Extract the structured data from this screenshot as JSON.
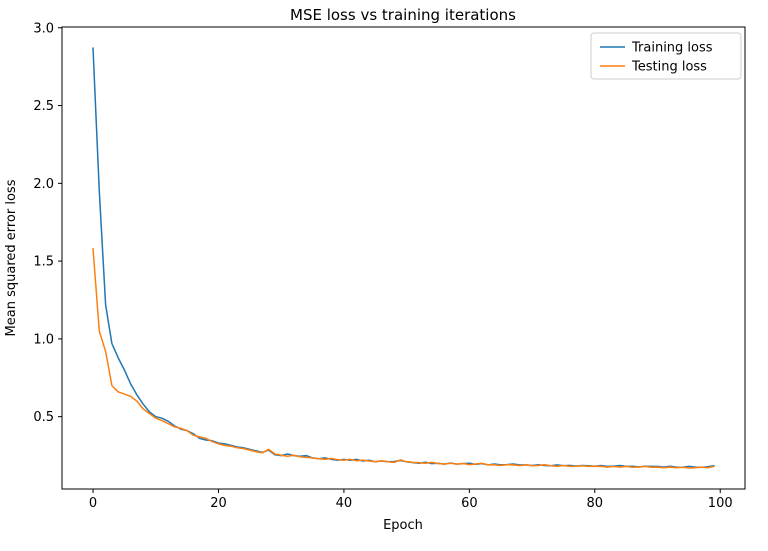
{
  "figure": {
    "title": "MSE loss vs training iterations",
    "xlabel": "Epoch",
    "ylabel": "Mean squared error loss"
  },
  "chart_data": {
    "type": "line",
    "title": "MSE loss vs training iterations",
    "xlabel": "Epoch",
    "ylabel": "Mean squared error loss",
    "xlim": [
      -4.95,
      103.95
    ],
    "ylim": [
      0.035,
      3.005
    ],
    "xticks": [
      0,
      20,
      40,
      60,
      80,
      100
    ],
    "yticks": [
      0.5,
      1.0,
      1.5,
      2.0,
      2.5,
      3.0
    ],
    "grid": false,
    "legend_position": "upper right",
    "x": [
      0,
      1,
      2,
      3,
      4,
      5,
      6,
      7,
      8,
      9,
      10,
      11,
      12,
      13,
      14,
      15,
      16,
      17,
      18,
      19,
      20,
      21,
      22,
      23,
      24,
      25,
      26,
      27,
      28,
      29,
      30,
      31,
      32,
      33,
      34,
      35,
      36,
      37,
      38,
      39,
      40,
      41,
      42,
      43,
      44,
      45,
      46,
      47,
      48,
      49,
      50,
      51,
      52,
      53,
      54,
      55,
      56,
      57,
      58,
      59,
      60,
      61,
      62,
      63,
      64,
      65,
      66,
      67,
      68,
      69,
      70,
      71,
      72,
      73,
      74,
      75,
      76,
      77,
      78,
      79,
      80,
      81,
      82,
      83,
      84,
      85,
      86,
      87,
      88,
      89,
      90,
      91,
      92,
      93,
      94,
      95,
      96,
      97,
      98,
      99
    ],
    "series": [
      {
        "name": "Training loss",
        "color": "#1f77b4",
        "values": [
          2.87,
          1.95,
          1.22,
          0.97,
          0.88,
          0.8,
          0.71,
          0.64,
          0.58,
          0.53,
          0.5,
          0.49,
          0.47,
          0.44,
          0.42,
          0.41,
          0.39,
          0.36,
          0.35,
          0.345,
          0.33,
          0.325,
          0.315,
          0.305,
          0.3,
          0.29,
          0.28,
          0.27,
          0.285,
          0.255,
          0.25,
          0.26,
          0.25,
          0.245,
          0.25,
          0.235,
          0.23,
          0.235,
          0.225,
          0.22,
          0.225,
          0.22,
          0.225,
          0.215,
          0.22,
          0.21,
          0.215,
          0.21,
          0.212,
          0.218,
          0.21,
          0.205,
          0.2,
          0.207,
          0.198,
          0.2,
          0.195,
          0.202,
          0.195,
          0.198,
          0.2,
          0.193,
          0.198,
          0.19,
          0.196,
          0.19,
          0.192,
          0.196,
          0.19,
          0.19,
          0.186,
          0.191,
          0.186,
          0.185,
          0.19,
          0.185,
          0.187,
          0.182,
          0.186,
          0.185,
          0.181,
          0.186,
          0.18,
          0.182,
          0.186,
          0.18,
          0.181,
          0.177,
          0.181,
          0.18,
          0.18,
          0.176,
          0.181,
          0.176,
          0.175,
          0.18,
          0.176,
          0.174,
          0.178,
          0.185
        ]
      },
      {
        "name": "Testing loss",
        "color": "#ff7f0e",
        "values": [
          1.58,
          1.05,
          0.92,
          0.7,
          0.66,
          0.645,
          0.63,
          0.6,
          0.55,
          0.52,
          0.49,
          0.475,
          0.455,
          0.435,
          0.425,
          0.41,
          0.38,
          0.37,
          0.36,
          0.34,
          0.325,
          0.315,
          0.31,
          0.3,
          0.295,
          0.285,
          0.275,
          0.268,
          0.29,
          0.26,
          0.252,
          0.246,
          0.252,
          0.242,
          0.238,
          0.234,
          0.23,
          0.226,
          0.231,
          0.224,
          0.22,
          0.226,
          0.216,
          0.221,
          0.215,
          0.21,
          0.216,
          0.21,
          0.206,
          0.222,
          0.21,
          0.206,
          0.205,
          0.2,
          0.206,
          0.199,
          0.196,
          0.201,
          0.195,
          0.199,
          0.191,
          0.196,
          0.2,
          0.19,
          0.191,
          0.186,
          0.191,
          0.19,
          0.186,
          0.19,
          0.185,
          0.186,
          0.191,
          0.185,
          0.181,
          0.186,
          0.18,
          0.181,
          0.185,
          0.18,
          0.18,
          0.181,
          0.176,
          0.18,
          0.176,
          0.18,
          0.175,
          0.176,
          0.18,
          0.175,
          0.176,
          0.171,
          0.176,
          0.171,
          0.175,
          0.17,
          0.171,
          0.176,
          0.171,
          0.18
        ]
      }
    ]
  }
}
